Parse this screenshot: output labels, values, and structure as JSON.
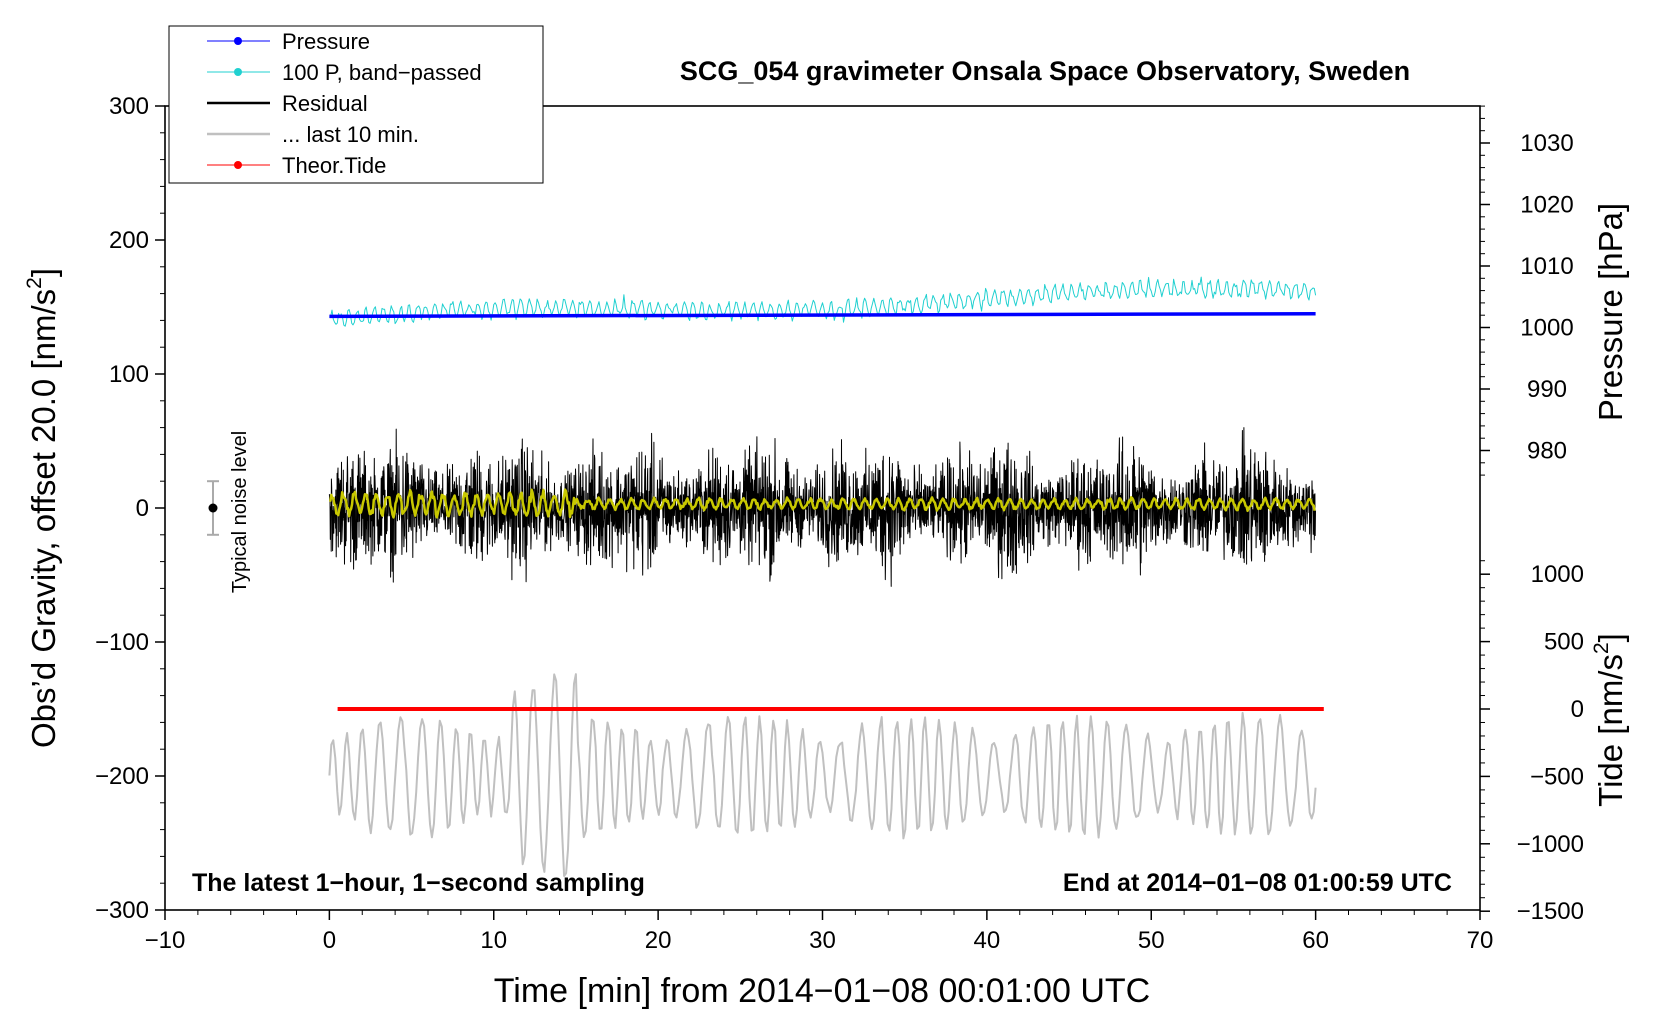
{
  "chart_data": {
    "type": "line",
    "title": "SCG_054 gravimeter Onsala Space Observatory, Sweden",
    "xlabel": "Time [min] from 2014−01−08 00:01:00 UTC",
    "ylabel_left": "Obs’d Gravity, offset 20.0 [nm/s",
    "ylabel_left_sup": "2",
    "ylabel_left_end": "]",
    "ylabel_pressure": "Pressure [hPa]",
    "ylabel_tide": "Tide [nm/s",
    "ylabel_tide_sup": "2",
    "ylabel_tide_end": "]",
    "xlim": [
      -10,
      70
    ],
    "ylim_left": [
      -300,
      300
    ],
    "ylim_pressure_ticks": [
      980,
      990,
      1000,
      1010,
      1020,
      1030
    ],
    "ylim_tide_ticks": [
      -1500,
      -1000,
      -500,
      0,
      500,
      1000
    ],
    "x_ticks": [
      "−10",
      "0",
      "10",
      "20",
      "30",
      "40",
      "50",
      "60",
      "70"
    ],
    "x_tick_values": [
      -10,
      0,
      10,
      20,
      30,
      40,
      50,
      60,
      70
    ],
    "y_left_ticks": [
      "−300",
      "−200",
      "−100",
      "0",
      "100",
      "200",
      "300"
    ],
    "y_left_tick_values": [
      -300,
      -200,
      -100,
      0,
      100,
      200,
      300
    ],
    "y_pressure_ticks": [
      "980",
      "990",
      "1000",
      "1010",
      "1020",
      "1030"
    ],
    "y_tide_ticks": [
      "−1500",
      "−1000",
      "−500",
      "0",
      "500",
      "1000"
    ],
    "legend": [
      {
        "label": "Pressure",
        "color": "#0000ff",
        "marker": "dot"
      },
      {
        "label": "100 P, band−passed",
        "color": "#20d0d0",
        "marker": "dot"
      },
      {
        "label": "Residual",
        "color": "#000000",
        "marker": "line"
      },
      {
        "label": "... last 10 min.",
        "color": "#c0c0c0",
        "marker": "line"
      },
      {
        "label": "Theor.Tide",
        "color": "#ff0000",
        "marker": "dot"
      }
    ],
    "legend_position": "top-left",
    "annotation_left": "The latest 1−hour, 1−second sampling",
    "annotation_right": "End at 2014−01−08 01:00:59 UTC",
    "noise_label": "Typical noise level",
    "noise_level": 20,
    "series": [
      {
        "name": "Pressure",
        "color": "#0000ff",
        "x_range": [
          0,
          60
        ],
        "start": 143,
        "end": 145
      },
      {
        "name": "100 P, band−passed",
        "color": "#20d0d0",
        "x_range": [
          0,
          60
        ],
        "start": 141,
        "end": 163,
        "amplitude": 9
      },
      {
        "name": "Residual",
        "color": "#000000",
        "x_range": [
          0,
          60
        ],
        "center": 0,
        "amplitude": 70
      },
      {
        "name": "Residual filtered",
        "color": "#c8c800",
        "x_range": [
          0,
          60
        ],
        "center": 3,
        "amplitude": 8
      },
      {
        "name": "... last 10 min.",
        "color": "#c0c0c0",
        "x_range": [
          0,
          60
        ],
        "center": -190,
        "amplitude": 45
      },
      {
        "name": "Theor.Tide",
        "color": "#ff0000",
        "x_range": [
          0.5,
          60.5
        ],
        "value": -150
      }
    ],
    "colors": {
      "pressure": "#0000ff",
      "bandpassed": "#20d0d0",
      "residual": "#000000",
      "filtered": "#c8c800",
      "last10": "#c0c0c0",
      "tide": "#ff0000"
    }
  }
}
